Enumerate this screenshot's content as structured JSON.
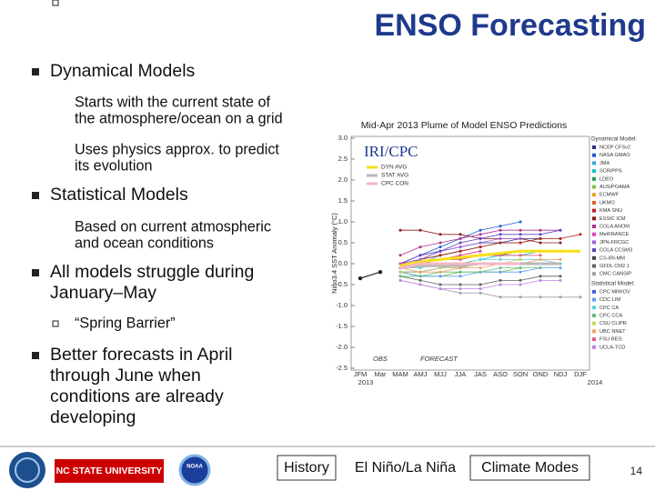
{
  "title": "ENSO Forecasting",
  "bullets": [
    {
      "lines": [
        "Dynamical Models"
      ],
      "sub": [
        {
          "lines": [
            "Starts with the current state of",
            "the atmosphere/ocean on a grid"
          ]
        },
        {
          "lines": [
            "Uses physics approx. to predict",
            "its evolution"
          ]
        }
      ]
    },
    {
      "lines": [
        "Statistical Models"
      ],
      "sub": [
        {
          "lines": [
            "Based on current atmospheric",
            "and ocean conditions"
          ]
        }
      ]
    },
    {
      "lines": [
        "All models struggle during",
        "January–May"
      ],
      "sub": [
        {
          "lines": [
            "“Spring Barrier”"
          ]
        }
      ]
    },
    {
      "lines": [
        "Better forecasts in April",
        "through June when",
        "conditions are already",
        "developing"
      ],
      "sub": []
    }
  ],
  "chart_data": {
    "type": "line",
    "title": "Mid-Apr 2013 Plume of Model ENSO Predictions",
    "logo_text": "IRI/CPC",
    "y_label": "Niño3.4 SST Anomaly (°C)",
    "categories": [
      "JFM",
      "Mar",
      "MAM",
      "AMJ",
      "MJJ",
      "JJA",
      "JAS",
      "ASO",
      "SON",
      "OND",
      "NDJ",
      "DJF"
    ],
    "years": [
      "2013",
      "2014"
    ],
    "annotations": [
      "OBS",
      "FORECAST"
    ],
    "ylim": [
      -2.5,
      3
    ],
    "yticks": [
      {
        "value": 3,
        "label": "3.0"
      },
      2.5,
      {
        "value": 2,
        "label": "2.0"
      },
      1.5,
      {
        "value": 1,
        "label": "1.0"
      },
      0.5,
      {
        "value": 0,
        "label": "0.0"
      },
      -0.5,
      {
        "value": -1,
        "label": "-1.0"
      },
      -1.5,
      {
        "value": -2,
        "label": "-2.0"
      },
      -2.5
    ],
    "obs": {
      "color": "#222222",
      "values": [
        -0.35,
        -0.2,
        null,
        null,
        null,
        null,
        null,
        null,
        null,
        null,
        null,
        null
      ]
    },
    "series": [
      {
        "name": "DYN AVG",
        "color": "#f5e01a",
        "values": [
          null,
          null,
          -0.05,
          0.05,
          0.1,
          0.15,
          0.2,
          0.25,
          0.3,
          0.3,
          0.3,
          0.3
        ]
      },
      {
        "name": "STAT AVG",
        "color": "#b8b8b8",
        "values": [
          null,
          null,
          -0.1,
          -0.05,
          -0.05,
          -0.05,
          0,
          0,
          0,
          0,
          0,
          null
        ]
      },
      {
        "name": "CPC CON",
        "color": "#f4b8c4",
        "values": [
          null,
          null,
          -0.1,
          0,
          0,
          0,
          0,
          0,
          0,
          null,
          null,
          null
        ]
      }
    ],
    "dynamical_models": {
      "title": "Dynamical Model:",
      "series": [
        {
          "name": "NCEP CFSv2",
          "color": "#2b2f8f",
          "values": [
            null,
            null,
            -0.1,
            0.1,
            0.3,
            0.4,
            0.5,
            0.5,
            0.6,
            0.6,
            null,
            null
          ]
        },
        {
          "name": "NASA GMAO",
          "color": "#1e5fd0",
          "values": [
            null,
            null,
            0,
            0.2,
            0.4,
            0.6,
            0.8,
            0.9,
            1,
            null,
            null,
            null
          ]
        },
        {
          "name": "JMA",
          "color": "#3aa0e0",
          "values": [
            null,
            null,
            -0.1,
            0,
            0.2,
            0.3,
            0.4,
            null,
            null,
            null,
            null,
            null
          ]
        },
        {
          "name": "SCRIPPS",
          "color": "#18c0c0",
          "values": [
            null,
            null,
            -0.2,
            -0.2,
            -0.1,
            0,
            0.1,
            0.2,
            0.2,
            0.3,
            null,
            null
          ]
        },
        {
          "name": "LDEO",
          "color": "#20a050",
          "values": [
            null,
            null,
            0,
            0.1,
            0.2,
            0.3,
            0.4,
            0.5,
            0.5,
            0.6,
            0.6,
            null
          ]
        },
        {
          "name": "AUS/POAMA",
          "color": "#80c040",
          "values": [
            null,
            null,
            -0.2,
            -0.3,
            -0.3,
            -0.2,
            -0.2,
            -0.2,
            -0.1,
            null,
            null,
            null
          ]
        },
        {
          "name": "ECMWF",
          "color": "#e8a020",
          "values": [
            null,
            null,
            -0.1,
            0,
            0.1,
            0.2,
            0.3,
            null,
            null,
            null,
            null,
            null
          ]
        },
        {
          "name": "UKMO",
          "color": "#e06020",
          "values": [
            null,
            null,
            -0.1,
            0,
            0.1,
            0.2,
            0.3,
            null,
            null,
            null,
            null,
            null
          ]
        },
        {
          "name": "KMA SNU",
          "color": "#c02020",
          "values": [
            null,
            null,
            0,
            0.1,
            0.2,
            0.3,
            0.4,
            0.5,
            0.5,
            0.6,
            0.6,
            0.7
          ]
        },
        {
          "name": "ESSIC ICM",
          "color": "#8a1a1a",
          "values": [
            null,
            null,
            0.8,
            0.8,
            0.7,
            0.7,
            0.6,
            0.6,
            0.6,
            0.5,
            0.5,
            null
          ]
        },
        {
          "name": "COLA ANOM",
          "color": "#b03090",
          "values": [
            null,
            null,
            0.2,
            0.4,
            0.5,
            0.6,
            0.7,
            0.8,
            0.8,
            0.8,
            0.8,
            null
          ]
        },
        {
          "name": "MetFRANCE",
          "color": "#e040c0",
          "values": [
            null,
            null,
            -0.1,
            0,
            0.1,
            0.2,
            0.3,
            null,
            null,
            null,
            null,
            null
          ]
        },
        {
          "name": "JPN-FRCGC",
          "color": "#a060e0",
          "values": [
            null,
            null,
            0,
            0.1,
            0.3,
            0.4,
            0.5,
            0.6,
            0.6,
            null,
            null,
            null
          ]
        },
        {
          "name": "COLA CCSM3",
          "color": "#6040c0",
          "values": [
            null,
            null,
            0,
            0.2,
            0.3,
            0.5,
            0.6,
            0.7,
            0.7,
            0.7,
            0.8,
            null
          ]
        },
        {
          "name": "CS-IRI-MM",
          "color": "#404040",
          "values": [
            null,
            null,
            -0.1,
            0,
            0.1,
            0.1,
            0.2,
            0.2,
            0.3,
            0.3,
            0.3,
            null
          ]
        },
        {
          "name": "GFDL CM2.1",
          "color": "#606060",
          "values": [
            null,
            null,
            -0.3,
            -0.4,
            -0.5,
            -0.5,
            -0.5,
            -0.4,
            -0.4,
            -0.3,
            -0.3,
            null
          ]
        },
        {
          "name": "CMC CANSIP",
          "color": "#a0a0a0",
          "values": [
            null,
            null,
            -0.4,
            -0.5,
            -0.6,
            -0.7,
            -0.7,
            -0.8,
            -0.8,
            -0.8,
            -0.8,
            -0.8
          ]
        }
      ]
    },
    "statistical_models": {
      "title": "Statistical Model:",
      "series": [
        {
          "name": "CPC MRKOV",
          "color": "#4060e0",
          "values": [
            null,
            null,
            -0.2,
            -0.2,
            -0.1,
            -0.1,
            0,
            0,
            0,
            0,
            0,
            null
          ]
        },
        {
          "name": "CDC LIM",
          "color": "#60a0f0",
          "values": [
            null,
            null,
            -0.2,
            -0.3,
            -0.3,
            -0.3,
            -0.2,
            -0.2,
            -0.2,
            -0.1,
            -0.1,
            null
          ]
        },
        {
          "name": "CPC CA",
          "color": "#60d0d0",
          "values": [
            null,
            null,
            -0.1,
            -0.1,
            0,
            0,
            0.1,
            0.1,
            0.1,
            0.1,
            0,
            null
          ]
        },
        {
          "name": "CPC CCA",
          "color": "#60c080",
          "values": [
            null,
            null,
            -0.3,
            -0.3,
            -0.2,
            -0.2,
            -0.2,
            -0.1,
            -0.1,
            -0.1,
            null,
            null
          ]
        },
        {
          "name": "CSU CLIPR",
          "color": "#d0d060",
          "values": [
            null,
            null,
            -0.2,
            -0.2,
            -0.1,
            -0.1,
            0,
            0,
            0.1,
            null,
            null,
            null
          ]
        },
        {
          "name": "UBC NNET",
          "color": "#f0a060",
          "values": [
            null,
            null,
            -0.1,
            -0.2,
            -0.2,
            -0.1,
            -0.1,
            0,
            0,
            0.1,
            0.1,
            null
          ]
        },
        {
          "name": "FSU REG",
          "color": "#e06080",
          "values": [
            null,
            null,
            0,
            0,
            0.1,
            0.1,
            0.2,
            0.2,
            0.2,
            0.2,
            null,
            null
          ]
        },
        {
          "name": "UCLA-TCD",
          "color": "#c080e0",
          "values": [
            null,
            null,
            -0.4,
            -0.5,
            -0.6,
            -0.6,
            -0.6,
            -0.5,
            -0.5,
            -0.4,
            -0.4,
            null
          ]
        }
      ]
    }
  },
  "footer": {
    "logo_text": "NC STATE UNIVERSITY",
    "noaa": "NOAA",
    "nav": [
      "History",
      "El Niño/La Niña",
      "Climate Modes"
    ],
    "page_number": 14
  }
}
